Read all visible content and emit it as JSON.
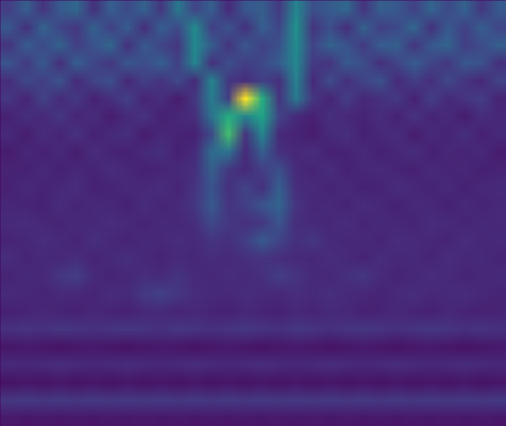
{
  "chart_data": {
    "type": "heatmap",
    "color": "viridis",
    "clim": [
      0,
      1
    ],
    "tick_labels": false,
    "cells": [
      [
        0.18,
        0.3,
        0.15,
        0.28,
        0.33,
        0.14,
        0.3,
        0.22,
        0.31,
        0.16,
        0.4,
        0.2,
        0.3,
        0.12,
        0.27,
        0.29,
        0.17,
        0.45,
        0.24,
        0.28,
        0.33,
        0.15,
        0.3,
        0.27,
        0.19,
        0.32,
        0.22,
        0.31,
        0.16,
        0.28
      ],
      [
        0.27,
        0.14,
        0.32,
        0.2,
        0.16,
        0.31,
        0.19,
        0.29,
        0.13,
        0.3,
        0.22,
        0.48,
        0.18,
        0.26,
        0.14,
        0.3,
        0.21,
        0.5,
        0.15,
        0.24,
        0.13,
        0.31,
        0.18,
        0.22,
        0.33,
        0.14,
        0.28,
        0.19,
        0.3,
        0.21
      ],
      [
        0.15,
        0.29,
        0.22,
        0.31,
        0.18,
        0.25,
        0.33,
        0.14,
        0.28,
        0.2,
        0.16,
        0.47,
        0.29,
        0.15,
        0.27,
        0.19,
        0.25,
        0.48,
        0.2,
        0.31,
        0.26,
        0.17,
        0.29,
        0.3,
        0.15,
        0.27,
        0.32,
        0.18,
        0.23,
        0.3
      ],
      [
        0.26,
        0.17,
        0.28,
        0.13,
        0.3,
        0.21,
        0.16,
        0.27,
        0.23,
        0.3,
        0.19,
        0.46,
        0.14,
        0.24,
        0.18,
        0.22,
        0.29,
        0.46,
        0.17,
        0.15,
        0.28,
        0.24,
        0.14,
        0.2,
        0.29,
        0.21,
        0.16,
        0.27,
        0.25,
        0.14
      ],
      [
        0.13,
        0.22,
        0.18,
        0.26,
        0.12,
        0.2,
        0.24,
        0.11,
        0.19,
        0.15,
        0.22,
        0.12,
        0.45,
        0.16,
        0.13,
        0.19,
        0.14,
        0.44,
        0.12,
        0.23,
        0.14,
        0.2,
        0.25,
        0.12,
        0.18,
        0.13,
        0.22,
        0.15,
        0.11,
        0.2
      ],
      [
        0.16,
        0.1,
        0.2,
        0.12,
        0.17,
        0.09,
        0.14,
        0.19,
        0.1,
        0.13,
        0.08,
        0.16,
        0.42,
        0.18,
        1.0,
        0.62,
        0.15,
        0.4,
        0.16,
        0.1,
        0.18,
        0.11,
        0.14,
        0.17,
        0.09,
        0.19,
        0.12,
        0.15,
        0.18,
        0.1
      ],
      [
        0.09,
        0.14,
        0.11,
        0.16,
        0.1,
        0.13,
        0.08,
        0.12,
        0.15,
        0.09,
        0.11,
        0.13,
        0.38,
        0.62,
        0.45,
        0.58,
        0.2,
        0.12,
        0.09,
        0.14,
        0.11,
        0.1,
        0.13,
        0.09,
        0.15,
        0.1,
        0.12,
        0.08,
        0.13,
        0.11
      ],
      [
        0.12,
        0.08,
        0.13,
        0.1,
        0.15,
        0.09,
        0.12,
        0.14,
        0.08,
        0.11,
        0.1,
        0.09,
        0.22,
        0.7,
        0.15,
        0.45,
        0.12,
        0.1,
        0.08,
        0.12,
        0.14,
        0.09,
        0.11,
        0.13,
        0.08,
        0.12,
        0.1,
        0.14,
        0.09,
        0.12
      ],
      [
        0.08,
        0.11,
        0.09,
        0.12,
        0.08,
        0.13,
        0.1,
        0.09,
        0.12,
        0.14,
        0.09,
        0.12,
        0.35,
        0.38,
        0.12,
        0.3,
        0.14,
        0.11,
        0.13,
        0.09,
        0.1,
        0.12,
        0.09,
        0.11,
        0.13,
        0.09,
        0.11,
        0.1,
        0.12,
        0.08
      ],
      [
        0.1,
        0.09,
        0.12,
        0.09,
        0.11,
        0.1,
        0.13,
        0.11,
        0.09,
        0.1,
        0.12,
        0.14,
        0.3,
        0.16,
        0.12,
        0.18,
        0.24,
        0.12,
        0.1,
        0.13,
        0.09,
        0.11,
        0.12,
        0.1,
        0.09,
        0.12,
        0.1,
        0.11,
        0.09,
        0.1
      ],
      [
        0.09,
        0.12,
        0.1,
        0.11,
        0.13,
        0.09,
        0.1,
        0.12,
        0.11,
        0.13,
        0.1,
        0.15,
        0.26,
        0.14,
        0.2,
        0.14,
        0.3,
        0.13,
        0.12,
        0.1,
        0.12,
        0.09,
        0.1,
        0.13,
        0.11,
        0.1,
        0.12,
        0.09,
        0.11,
        0.12
      ],
      [
        0.11,
        0.1,
        0.09,
        0.13,
        0.1,
        0.12,
        0.11,
        0.09,
        0.13,
        0.1,
        0.12,
        0.16,
        0.28,
        0.15,
        0.18,
        0.26,
        0.32,
        0.15,
        0.11,
        0.12,
        0.1,
        0.13,
        0.11,
        0.09,
        0.12,
        0.11,
        0.09,
        0.12,
        0.1,
        0.11
      ],
      [
        0.12,
        0.13,
        0.11,
        0.1,
        0.12,
        0.11,
        0.13,
        0.12,
        0.1,
        0.12,
        0.11,
        0.13,
        0.22,
        0.16,
        0.14,
        0.16,
        0.26,
        0.13,
        0.12,
        0.11,
        0.13,
        0.1,
        0.12,
        0.11,
        0.1,
        0.13,
        0.12,
        0.1,
        0.12,
        0.11
      ],
      [
        0.1,
        0.11,
        0.13,
        0.12,
        0.1,
        0.14,
        0.11,
        0.1,
        0.12,
        0.11,
        0.13,
        0.12,
        0.15,
        0.14,
        0.18,
        0.28,
        0.2,
        0.14,
        0.16,
        0.12,
        0.11,
        0.12,
        0.1,
        0.13,
        0.12,
        0.11,
        0.1,
        0.13,
        0.11,
        0.12
      ],
      [
        0.13,
        0.1,
        0.12,
        0.11,
        0.13,
        0.1,
        0.12,
        0.14,
        0.11,
        0.1,
        0.12,
        0.11,
        0.13,
        0.12,
        0.14,
        0.15,
        0.13,
        0.12,
        0.11,
        0.13,
        0.12,
        0.1,
        0.13,
        0.11,
        0.12,
        0.1,
        0.13,
        0.11,
        0.12,
        0.1
      ],
      [
        0.1,
        0.12,
        0.11,
        0.16,
        0.18,
        0.12,
        0.1,
        0.11,
        0.13,
        0.12,
        0.15,
        0.12,
        0.11,
        0.13,
        0.12,
        0.14,
        0.18,
        0.15,
        0.12,
        0.11,
        0.14,
        0.16,
        0.12,
        0.1,
        0.11,
        0.13,
        0.12,
        0.1,
        0.11,
        0.12
      ],
      [
        0.12,
        0.11,
        0.1,
        0.12,
        0.11,
        0.1,
        0.13,
        0.12,
        0.17,
        0.19,
        0.16,
        0.13,
        0.12,
        0.11,
        0.13,
        0.12,
        0.11,
        0.13,
        0.12,
        0.14,
        0.12,
        0.11,
        0.1,
        0.12,
        0.13,
        0.11,
        0.12,
        0.13,
        0.11,
        0.1
      ],
      [
        0.09,
        0.1,
        0.11,
        0.1,
        0.09,
        0.11,
        0.1,
        0.09,
        0.11,
        0.12,
        0.1,
        0.11,
        0.1,
        0.09,
        0.11,
        0.1,
        0.09,
        0.11,
        0.1,
        0.12,
        0.11,
        0.09,
        0.1,
        0.11,
        0.1,
        0.09,
        0.11,
        0.1,
        0.09,
        0.1
      ],
      [
        0.14,
        0.15,
        0.14,
        0.16,
        0.15,
        0.14,
        0.15,
        0.16,
        0.15,
        0.14,
        0.16,
        0.15,
        0.14,
        0.15,
        0.16,
        0.15,
        0.14,
        0.16,
        0.15,
        0.14,
        0.15,
        0.16,
        0.15,
        0.14,
        0.15,
        0.16,
        0.15,
        0.14,
        0.15,
        0.14
      ],
      [
        0.06,
        0.07,
        0.06,
        0.05,
        0.06,
        0.07,
        0.06,
        0.05,
        0.06,
        0.07,
        0.06,
        0.05,
        0.06,
        0.07,
        0.06,
        0.05,
        0.06,
        0.07,
        0.06,
        0.05,
        0.06,
        0.07,
        0.06,
        0.05,
        0.06,
        0.07,
        0.06,
        0.05,
        0.06,
        0.07
      ],
      [
        0.12,
        0.11,
        0.12,
        0.13,
        0.12,
        0.11,
        0.12,
        0.13,
        0.12,
        0.11,
        0.12,
        0.13,
        0.12,
        0.11,
        0.12,
        0.13,
        0.12,
        0.11,
        0.12,
        0.13,
        0.12,
        0.11,
        0.12,
        0.13,
        0.12,
        0.11,
        0.12,
        0.13,
        0.12,
        0.11
      ],
      [
        0.05,
        0.06,
        0.05,
        0.06,
        0.05,
        0.06,
        0.05,
        0.06,
        0.05,
        0.06,
        0.05,
        0.06,
        0.05,
        0.06,
        0.05,
        0.06,
        0.05,
        0.06,
        0.05,
        0.06,
        0.05,
        0.06,
        0.05,
        0.06,
        0.05,
        0.06,
        0.05,
        0.06,
        0.05,
        0.06
      ],
      [
        0.16,
        0.17,
        0.16,
        0.17,
        0.16,
        0.17,
        0.16,
        0.17,
        0.16,
        0.17,
        0.16,
        0.17,
        0.16,
        0.17,
        0.16,
        0.17,
        0.16,
        0.17,
        0.16,
        0.17,
        0.16,
        0.17,
        0.16,
        0.17,
        0.16,
        0.17,
        0.16,
        0.17,
        0.16,
        0.17
      ],
      [
        0.07,
        0.06,
        0.07,
        0.06,
        0.07,
        0.06,
        0.07,
        0.06,
        0.07,
        0.06,
        0.07,
        0.06,
        0.07,
        0.06,
        0.07,
        0.06,
        0.07,
        0.06,
        0.07,
        0.06,
        0.07,
        0.06,
        0.07,
        0.06,
        0.07,
        0.06,
        0.07,
        0.06,
        0.07,
        0.06
      ]
    ]
  }
}
